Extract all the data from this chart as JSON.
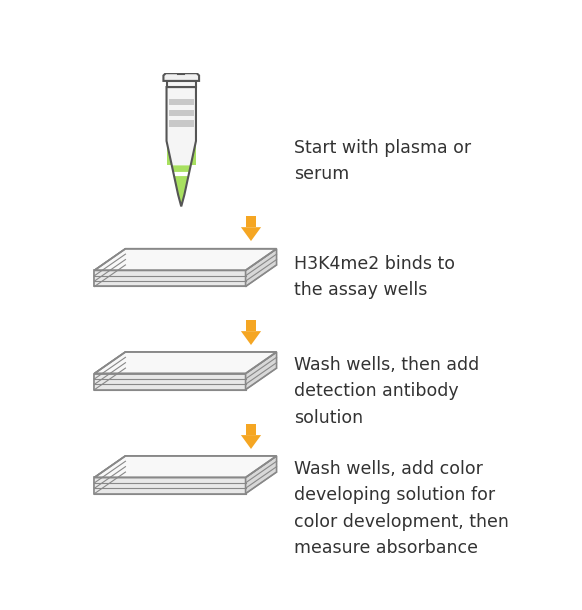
{
  "background_color": "#ffffff",
  "arrow_color": "#F5A623",
  "text_color": "#333333",
  "tube_body_color": "#f5f5f5",
  "tube_cap_color": "#f0f0f0",
  "tube_stripe_color": "#c8c8c8",
  "tube_liquid_color": "#a8e060",
  "tube_outline_color": "#555555",
  "plate_top_color": "#f8f8f8",
  "plate_side_color": "#d8d8d8",
  "plate_front_color": "#e8e8e8",
  "plate_outline_color": "#888888",
  "well_empty_color": "#ffffff",
  "well_diamond_color": "#dddddd",
  "well_orange_color": "#F5A623",
  "well_orange_edge": "#d48000",
  "steps": [
    {
      "text": "Start with plasma or\nserum",
      "type": "tube"
    },
    {
      "text": "H3K4me2 binds to\nthe assay wells",
      "type": "plate_empty"
    },
    {
      "text": "Wash wells, then add\ndetection antibody\nsolution",
      "type": "plate_empty"
    },
    {
      "text": "Wash wells, add color\ndeveloping solution for\ncolor development, then\nmeasure absorbance",
      "type": "plate_orange"
    }
  ],
  "font_size": 12.5,
  "figsize": [
    5.82,
    6.1
  ],
  "dpi": 100
}
